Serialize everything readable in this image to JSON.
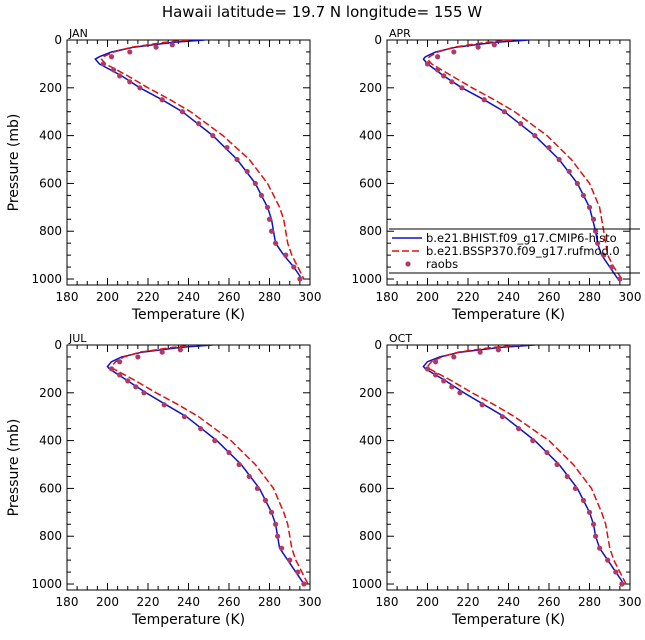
{
  "title": "Hawaii   latitude= 19.7 N longitude= 155 W",
  "colors": {
    "hist": "#1010c8",
    "ssp": "#e01010",
    "obs": "#b03a64"
  },
  "legend": {
    "panel": "APR",
    "placement": "bottom-right of APR panel",
    "entries": [
      {
        "key": "hist",
        "label": "b.e21.BHIST.f09_g17.CMIP6-histo",
        "style": "solid-line"
      },
      {
        "key": "ssp",
        "label": "b.e21.BSSP370.f09_g17.rufmod.0",
        "style": "dashed-line"
      },
      {
        "key": "obs",
        "label": "raobs",
        "style": "dot"
      }
    ]
  },
  "chart_data": [
    {
      "type": "line",
      "title": "JAN",
      "xlabel": "Temperature (K)",
      "ylabel": "Pressure (mb)",
      "xlim": [
        180,
        300
      ],
      "ylim": [
        0,
        1025
      ],
      "y_inverted": true,
      "xticks": [
        180,
        200,
        220,
        240,
        260,
        280,
        300
      ],
      "yticks": [
        0,
        200,
        400,
        600,
        800,
        1000
      ],
      "show_ylabel": true,
      "series": [
        {
          "key": "hist",
          "p": [
            0,
            10,
            30,
            50,
            70,
            80,
            100,
            150,
            200,
            250,
            300,
            400,
            500,
            600,
            700,
            750,
            800,
            850,
            900,
            950,
            1000
          ],
          "t": [
            248,
            232,
            213,
            202,
            196,
            194,
            196,
            207,
            216,
            227,
            237,
            252,
            264,
            273,
            279,
            281,
            282,
            283,
            287,
            292,
            296
          ]
        },
        {
          "key": "ssp",
          "p": [
            0,
            10,
            30,
            50,
            70,
            80,
            100,
            150,
            200,
            250,
            300,
            400,
            500,
            600,
            700,
            750,
            800,
            850,
            900,
            950,
            1000
          ],
          "t": [
            240,
            228,
            212,
            203,
            198,
            197,
            199,
            210,
            220,
            231,
            241,
            257,
            270,
            279,
            285,
            287,
            288,
            289,
            291,
            294,
            297
          ]
        },
        {
          "key": "obs",
          "p": [
            20,
            30,
            50,
            70,
            100,
            125,
            150,
            175,
            200,
            250,
            300,
            350,
            400,
            450,
            500,
            550,
            600,
            650,
            700,
            750,
            800,
            850,
            900,
            950,
            1000
          ],
          "t": [
            232,
            224,
            211,
            202,
            198,
            203,
            206,
            211,
            216,
            227,
            237,
            245,
            252,
            259,
            264,
            269,
            273,
            276,
            279,
            280,
            281,
            283,
            288,
            292,
            295
          ]
        }
      ]
    },
    {
      "type": "line",
      "title": "APR",
      "xlabel": "Temperature (K)",
      "ylabel": "",
      "xlim": [
        180,
        300
      ],
      "ylim": [
        0,
        1025
      ],
      "y_inverted": true,
      "xticks": [
        180,
        200,
        220,
        240,
        260,
        280,
        300
      ],
      "yticks": [
        0,
        200,
        400,
        600,
        800,
        1000
      ],
      "show_ylabel": false,
      "series": [
        {
          "key": "hist",
          "p": [
            0,
            10,
            30,
            50,
            70,
            80,
            100,
            150,
            200,
            250,
            300,
            400,
            500,
            600,
            700,
            800,
            850,
            900,
            950,
            1000
          ],
          "t": [
            250,
            233,
            214,
            204,
            199,
            198,
            200,
            208,
            217,
            228,
            238,
            253,
            265,
            274,
            280,
            283,
            284,
            286,
            290,
            294
          ]
        },
        {
          "key": "ssp",
          "p": [
            0,
            10,
            30,
            50,
            70,
            80,
            100,
            150,
            200,
            250,
            300,
            400,
            500,
            600,
            700,
            800,
            850,
            900,
            950,
            1000
          ],
          "t": [
            242,
            229,
            213,
            205,
            201,
            200,
            202,
            212,
            222,
            233,
            243,
            259,
            271,
            280,
            285,
            287,
            288,
            289,
            292,
            296
          ]
        },
        {
          "key": "obs",
          "p": [
            20,
            30,
            50,
            70,
            100,
            125,
            150,
            175,
            200,
            250,
            300,
            350,
            400,
            450,
            500,
            550,
            600,
            650,
            700,
            750,
            800,
            850,
            900,
            950,
            1000
          ],
          "t": [
            233,
            225,
            213,
            205,
            200,
            205,
            208,
            212,
            217,
            228,
            238,
            246,
            253,
            260,
            265,
            270,
            274,
            277,
            280,
            282,
            283,
            284,
            287,
            291,
            295
          ]
        }
      ]
    },
    {
      "type": "line",
      "title": "JUL",
      "xlabel": "Temperature (K)",
      "ylabel": "Pressure (mb)",
      "xlim": [
        180,
        300
      ],
      "ylim": [
        0,
        1025
      ],
      "y_inverted": true,
      "xticks": [
        180,
        200,
        220,
        240,
        260,
        280,
        300
      ],
      "yticks": [
        0,
        200,
        400,
        600,
        800,
        1000
      ],
      "show_ylabel": true,
      "series": [
        {
          "key": "hist",
          "p": [
            0,
            10,
            30,
            50,
            70,
            90,
            100,
            150,
            200,
            250,
            300,
            400,
            500,
            600,
            700,
            750,
            800,
            850,
            900,
            950,
            1000
          ],
          "t": [
            252,
            236,
            217,
            207,
            202,
            200,
            201,
            210,
            219,
            229,
            239,
            254,
            266,
            275,
            281,
            283,
            284,
            285,
            289,
            293,
            297
          ]
        },
        {
          "key": "ssp",
          "p": [
            0,
            10,
            30,
            50,
            70,
            90,
            100,
            150,
            200,
            250,
            300,
            400,
            500,
            600,
            700,
            750,
            800,
            850,
            900,
            950,
            1000
          ],
          "t": [
            244,
            232,
            216,
            208,
            204,
            202,
            203,
            214,
            224,
            235,
            245,
            261,
            273,
            282,
            287,
            289,
            290,
            291,
            293,
            296,
            299
          ]
        },
        {
          "key": "obs",
          "p": [
            20,
            30,
            50,
            70,
            100,
            125,
            150,
            175,
            200,
            250,
            300,
            350,
            400,
            450,
            500,
            550,
            600,
            650,
            700,
            750,
            800,
            850,
            900,
            950,
            1000
          ],
          "t": [
            236,
            227,
            215,
            206,
            202,
            206,
            210,
            214,
            218,
            228,
            238,
            246,
            253,
            260,
            265,
            270,
            274,
            278,
            281,
            283,
            284,
            286,
            290,
            294,
            297
          ]
        }
      ]
    },
    {
      "type": "line",
      "title": "OCT",
      "xlabel": "Temperature (K)",
      "ylabel": "",
      "xlim": [
        180,
        300
      ],
      "ylim": [
        0,
        1025
      ],
      "y_inverted": true,
      "xticks": [
        180,
        200,
        220,
        240,
        260,
        280,
        300
      ],
      "yticks": [
        0,
        200,
        400,
        600,
        800,
        1000
      ],
      "show_ylabel": false,
      "series": [
        {
          "key": "hist",
          "p": [
            0,
            10,
            30,
            50,
            70,
            90,
            100,
            150,
            200,
            250,
            300,
            400,
            500,
            600,
            700,
            750,
            800,
            850,
            900,
            950,
            1000
          ],
          "t": [
            253,
            236,
            216,
            206,
            200,
            198,
            199,
            209,
            218,
            228,
            238,
            253,
            265,
            274,
            280,
            282,
            283,
            285,
            289,
            293,
            297
          ]
        },
        {
          "key": "ssp",
          "p": [
            0,
            10,
            30,
            50,
            70,
            90,
            100,
            150,
            200,
            250,
            300,
            400,
            500,
            600,
            700,
            750,
            800,
            850,
            900,
            950,
            1000
          ],
          "t": [
            246,
            232,
            215,
            207,
            202,
            200,
            201,
            212,
            222,
            233,
            243,
            260,
            272,
            281,
            286,
            288,
            289,
            290,
            292,
            295,
            298
          ]
        },
        {
          "key": "obs",
          "p": [
            20,
            30,
            50,
            70,
            100,
            125,
            150,
            175,
            200,
            250,
            300,
            350,
            400,
            450,
            500,
            550,
            600,
            650,
            700,
            750,
            800,
            850,
            900,
            950,
            1000
          ],
          "t": [
            235,
            226,
            213,
            204,
            200,
            204,
            208,
            212,
            216,
            227,
            237,
            245,
            252,
            259,
            264,
            269,
            273,
            277,
            280,
            282,
            283,
            285,
            289,
            293,
            296
          ]
        }
      ]
    }
  ]
}
